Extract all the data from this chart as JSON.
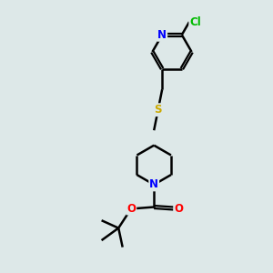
{
  "background_color": "#dde8e8",
  "bond_color": "#000000",
  "atom_colors": {
    "N": "#0000ff",
    "O": "#ff0000",
    "S": "#ccaa00",
    "Cl": "#00bb00",
    "C": "#000000"
  },
  "font_size_atom": 8.5,
  "figsize": [
    3.0,
    3.0
  ],
  "dpi": 100,
  "xlim": [
    0,
    10
  ],
  "ylim": [
    0,
    10
  ]
}
